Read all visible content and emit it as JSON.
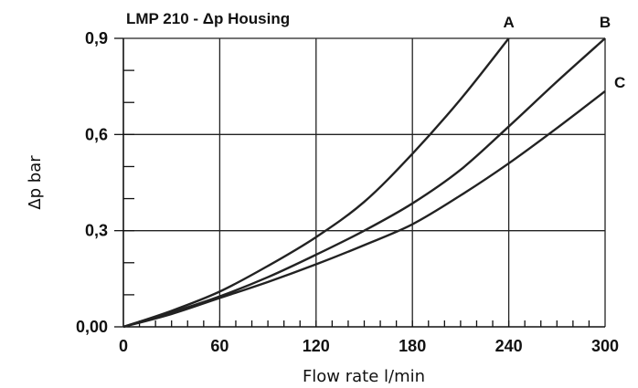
{
  "chart_data": {
    "type": "line",
    "title": "LMP 210 - Δp Housing",
    "xlabel": "Flow rate l/min",
    "ylabel": "Δp bar",
    "xlim": [
      0,
      300
    ],
    "ylim": [
      0,
      0.9
    ],
    "x_ticks": [
      {
        "value": 0,
        "label": "0"
      },
      {
        "value": 60,
        "label": "60"
      },
      {
        "value": 120,
        "label": "120"
      },
      {
        "value": 180,
        "label": "180"
      },
      {
        "value": 240,
        "label": "240"
      },
      {
        "value": 300,
        "label": "300"
      }
    ],
    "y_ticks": [
      {
        "value": 0,
        "label": "0,00"
      },
      {
        "value": 0.3,
        "label": "0,3"
      },
      {
        "value": 0.6,
        "label": "0,6"
      },
      {
        "value": 0.9,
        "label": "0,9"
      }
    ],
    "grid": true,
    "series": [
      {
        "name": "A",
        "x": [
          0,
          30,
          60,
          90,
          120,
          150,
          180,
          210,
          240
        ],
        "y": [
          0,
          0.05,
          0.11,
          0.19,
          0.28,
          0.39,
          0.54,
          0.71,
          0.9
        ]
      },
      {
        "name": "B",
        "x": [
          0,
          30,
          60,
          90,
          120,
          150,
          180,
          210,
          240,
          270,
          300
        ],
        "y": [
          0,
          0.045,
          0.095,
          0.155,
          0.225,
          0.3,
          0.385,
          0.49,
          0.625,
          0.765,
          0.9
        ]
      },
      {
        "name": "C",
        "x": [
          0,
          30,
          60,
          90,
          120,
          150,
          180,
          210,
          240,
          270,
          300
        ],
        "y": [
          0,
          0.04,
          0.09,
          0.14,
          0.195,
          0.255,
          0.32,
          0.41,
          0.51,
          0.62,
          0.735
        ]
      }
    ]
  }
}
